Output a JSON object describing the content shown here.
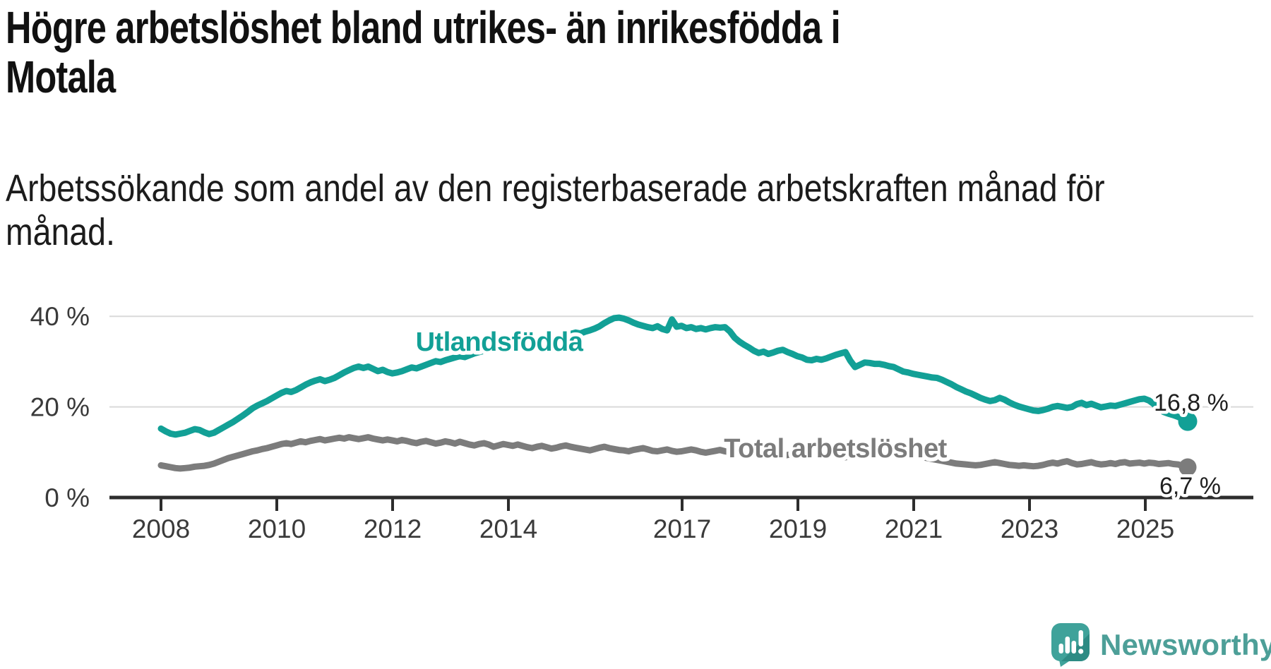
{
  "title": {
    "line1": "Högre arbetslöshet bland utrikes- än inrikesfödda i",
    "line2": "Motala",
    "full": "Högre arbetslöshet bland utrikes- än inrikesfödda i Motala"
  },
  "subtitle": {
    "line1": "Arbetssökande som andel av den registerbaserade arbetskraften månad för",
    "line2": "månad.",
    "full": "Arbetssökande som andel av den registerbaserade arbetskraften månad för månad."
  },
  "branding": {
    "logo_text": "Newsworthy",
    "brand_color": "#3fa29a",
    "logo_icon": "speech-bubble-bar-chart"
  },
  "chart_data": {
    "type": "line",
    "unit": "%",
    "x_monthly_start": "2008-01",
    "x_monthly_end": "2025-10",
    "x_tick_labels": [
      "2008",
      "2010",
      "2012",
      "2014",
      "2017",
      "2019",
      "2021",
      "2023",
      "2025"
    ],
    "y_tick_labels": [
      "40 %",
      "20 %",
      "0 %"
    ],
    "y_gridlines": [
      40,
      20
    ],
    "ylim": [
      0,
      43
    ],
    "grid": "horizontal",
    "legend_position": "inline-labels",
    "series": [
      {
        "name": "Utlandsfödda",
        "color": "#12a096",
        "end_label": "16,8 %",
        "end_value": 16.8,
        "values": [
          15.2,
          14.6,
          14.1,
          13.9,
          14.1,
          14.3,
          14.7,
          15.1,
          14.9,
          14.4,
          14.0,
          14.3,
          14.9,
          15.5,
          16.1,
          16.7,
          17.4,
          18.1,
          18.9,
          19.7,
          20.3,
          20.8,
          21.3,
          21.9,
          22.5,
          23.1,
          23.5,
          23.3,
          23.7,
          24.3,
          24.9,
          25.4,
          25.8,
          26.1,
          25.7,
          26.0,
          26.4,
          27.0,
          27.6,
          28.1,
          28.6,
          28.9,
          28.6,
          28.9,
          28.4,
          27.9,
          28.2,
          27.7,
          27.4,
          27.6,
          27.9,
          28.3,
          28.7,
          28.5,
          28.9,
          29.3,
          29.7,
          30.1,
          29.9,
          30.3,
          30.6,
          30.9,
          31.2,
          31.0,
          31.4,
          31.8,
          32.1,
          32.4,
          32.7,
          33.0,
          33.2,
          33.5,
          33.3,
          33.7,
          34.0,
          33.8,
          34.2,
          34.5,
          34.3,
          34.7,
          35.0,
          34.8,
          35.2,
          35.5,
          35.8,
          36.1,
          36.4,
          36.2,
          36.6,
          36.9,
          37.3,
          37.8,
          38.5,
          39.1,
          39.6,
          39.7,
          39.5,
          39.1,
          38.6,
          38.2,
          37.9,
          37.6,
          37.4,
          37.8,
          37.2,
          36.9,
          39.3,
          37.7,
          37.9,
          37.4,
          37.6,
          37.2,
          37.4,
          37.1,
          37.4,
          37.6,
          37.5,
          37.6,
          36.7,
          35.3,
          34.4,
          33.7,
          33.1,
          32.4,
          31.9,
          32.2,
          31.7,
          32.0,
          32.4,
          32.6,
          32.1,
          31.7,
          31.2,
          30.9,
          30.4,
          30.3,
          30.6,
          30.4,
          30.7,
          31.1,
          31.5,
          31.8,
          32.1,
          30.2,
          28.8,
          29.3,
          29.8,
          29.7,
          29.5,
          29.5,
          29.3,
          29.0,
          28.8,
          28.3,
          27.8,
          27.6,
          27.3,
          27.1,
          26.9,
          26.7,
          26.5,
          26.4,
          26.0,
          25.5,
          25.0,
          24.4,
          23.9,
          23.4,
          23.0,
          22.5,
          22.0,
          21.6,
          21.3,
          21.5,
          22.0,
          21.6,
          21.0,
          20.5,
          20.1,
          19.8,
          19.5,
          19.2,
          19.1,
          19.3,
          19.6,
          20.0,
          20.2,
          20.0,
          19.8,
          20.0,
          20.6,
          20.9,
          20.4,
          20.7,
          20.3,
          19.9,
          20.1,
          20.3,
          20.2,
          20.5,
          20.8,
          21.1,
          21.4,
          21.7,
          21.8,
          21.4,
          20.6,
          19.6,
          18.9,
          18.5,
          18.2,
          17.8,
          17.3,
          16.8
        ]
      },
      {
        "name": "Total arbetslöshet",
        "color": "#7c7c7c",
        "end_label": "6,7 %",
        "end_value": 6.7,
        "values": [
          7.1,
          6.9,
          6.7,
          6.5,
          6.4,
          6.5,
          6.6,
          6.8,
          6.9,
          7.0,
          7.2,
          7.5,
          7.9,
          8.3,
          8.7,
          9.0,
          9.3,
          9.6,
          9.9,
          10.2,
          10.4,
          10.7,
          10.9,
          11.2,
          11.5,
          11.8,
          12.0,
          11.8,
          12.1,
          12.4,
          12.2,
          12.5,
          12.7,
          12.9,
          12.6,
          12.8,
          13.0,
          13.2,
          13.0,
          13.3,
          13.1,
          12.9,
          13.1,
          13.3,
          13.0,
          12.8,
          12.6,
          12.8,
          12.6,
          12.4,
          12.7,
          12.5,
          12.2,
          12.0,
          12.3,
          12.5,
          12.2,
          11.9,
          12.1,
          12.4,
          12.2,
          11.9,
          12.3,
          12.0,
          11.7,
          11.5,
          11.8,
          12.0,
          11.7,
          11.2,
          11.5,
          11.8,
          11.6,
          11.4,
          11.7,
          11.4,
          11.1,
          10.9,
          11.2,
          11.4,
          11.1,
          10.8,
          11.0,
          11.3,
          11.5,
          11.2,
          11.0,
          10.8,
          10.6,
          10.4,
          10.7,
          11.0,
          11.2,
          10.9,
          10.7,
          10.5,
          10.4,
          10.2,
          10.5,
          10.7,
          10.9,
          10.6,
          10.3,
          10.2,
          10.4,
          10.6,
          10.3,
          10.1,
          10.2,
          10.4,
          10.6,
          10.4,
          10.1,
          9.9,
          10.1,
          10.3,
          10.5,
          10.2,
          10.0,
          9.8,
          9.9,
          10.1,
          9.8,
          9.6,
          9.4,
          9.6,
          9.8,
          9.6,
          9.4,
          9.2,
          9.4,
          9.6,
          9.4,
          9.2,
          9.0,
          9.2,
          9.4,
          9.2,
          9.0,
          9.4,
          9.1,
          8.7,
          8.9,
          9.1,
          9.3,
          9.5,
          10.0,
          10.4,
          10.6,
          10.7,
          10.5,
          10.3,
          10.1,
          9.9,
          9.7,
          9.5,
          9.3,
          9.1,
          8.9,
          8.7,
          8.5,
          8.3,
          8.1,
          7.9,
          7.7,
          7.5,
          7.4,
          7.3,
          7.2,
          7.1,
          7.2,
          7.4,
          7.6,
          7.8,
          7.6,
          7.4,
          7.2,
          7.1,
          7.0,
          7.1,
          7.0,
          6.9,
          7.0,
          7.2,
          7.5,
          7.7,
          7.5,
          7.8,
          8.0,
          7.6,
          7.3,
          7.4,
          7.6,
          7.8,
          7.5,
          7.3,
          7.4,
          7.6,
          7.4,
          7.7,
          7.8,
          7.5,
          7.6,
          7.7,
          7.5,
          7.7,
          7.6,
          7.4,
          7.5,
          7.6,
          7.4,
          7.3,
          7.0,
          6.7
        ]
      }
    ]
  }
}
